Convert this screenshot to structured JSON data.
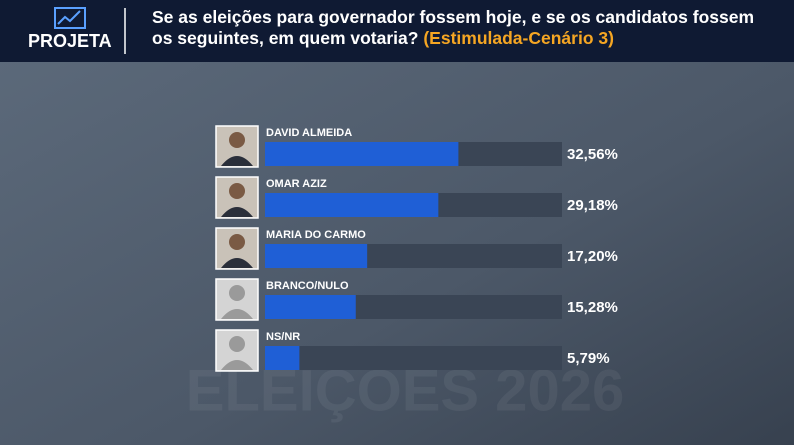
{
  "brand": "PROJETA",
  "chart_data": {
    "type": "hbar",
    "title": "Se as eleições para governador fossem hoje, e se os candidatos fossem os seguintes, em quem votaria?",
    "subtitle": "(Estimulada-Cenário 3)",
    "watermark": "ELEIÇÕES 2026",
    "categories": [
      "DAVID ALMEIDA",
      "OMAR AZIZ",
      "MARIA DO CARMO",
      "BRANCO/NULO",
      "NS/NR"
    ],
    "values": [
      32.56,
      29.18,
      17.2,
      15.28,
      5.79
    ],
    "value_labels": [
      "32,56%",
      "29,18%",
      "17,20%",
      "15,28%",
      "5,79%"
    ],
    "color": "#1f5fd6",
    "xlim": [
      0,
      50
    ]
  }
}
